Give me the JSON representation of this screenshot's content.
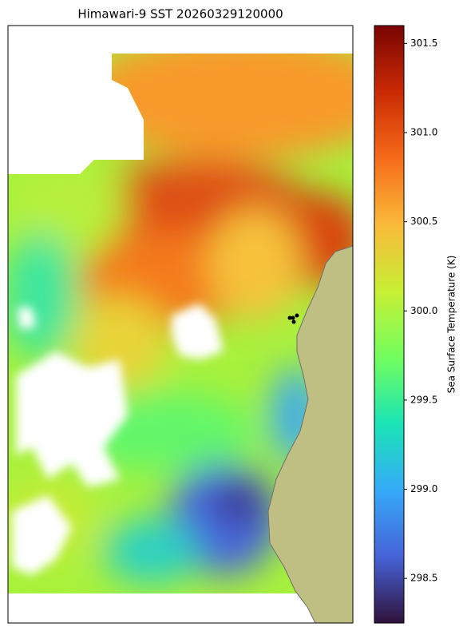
{
  "chart_data": {
    "type": "heatmap",
    "title": "Himawari-9 SST 20260329120000",
    "colorbar_label": "Sea Surface Temperature (K)",
    "colormap": "turbo",
    "clim": [
      298.25,
      301.6
    ],
    "colorbar_ticks": [
      298.5,
      299.0,
      299.5,
      300.0,
      300.5,
      301.0,
      301.5
    ],
    "colorbar_tick_labels": [
      "298.5",
      "299.0",
      "299.5",
      "300.0",
      "300.5",
      "301.0",
      "301.5"
    ]
  }
}
